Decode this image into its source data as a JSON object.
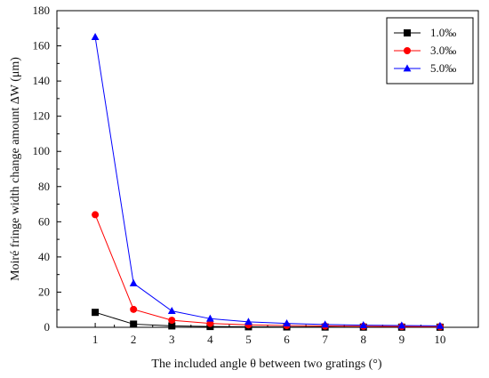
{
  "chart_data": {
    "type": "line",
    "title": "",
    "xlabel": "The included angle θ between two gratings (°)",
    "ylabel": "Moiré fringe width change amount ΔW (μm)",
    "xlim": [
      0,
      11
    ],
    "ylim": [
      0,
      180
    ],
    "xticks": [
      1,
      2,
      3,
      4,
      5,
      6,
      7,
      8,
      9,
      10
    ],
    "yticks": [
      0,
      20,
      40,
      60,
      80,
      100,
      120,
      140,
      160,
      180
    ],
    "x": [
      1,
      2,
      3,
      4,
      5,
      6,
      7,
      8,
      9,
      10
    ],
    "series": [
      {
        "name": "1.0‰",
        "color": "#000000",
        "marker": "square",
        "values": [
          8.5,
          1.8,
          0.8,
          0.45,
          0.3,
          0.22,
          0.16,
          0.12,
          0.09,
          0.07
        ]
      },
      {
        "name": "3.0‰",
        "color": "#ff0000",
        "marker": "circle",
        "values": [
          64,
          10.2,
          4.0,
          2.2,
          1.4,
          1.0,
          0.75,
          0.55,
          0.45,
          0.35
        ]
      },
      {
        "name": "5.0‰",
        "color": "#0000ff",
        "marker": "triangle",
        "values": [
          165,
          25,
          9.3,
          4.9,
          3.1,
          2.2,
          1.6,
          1.2,
          1.0,
          0.8
        ]
      }
    ],
    "grid": false,
    "legend_position": "top-right"
  }
}
